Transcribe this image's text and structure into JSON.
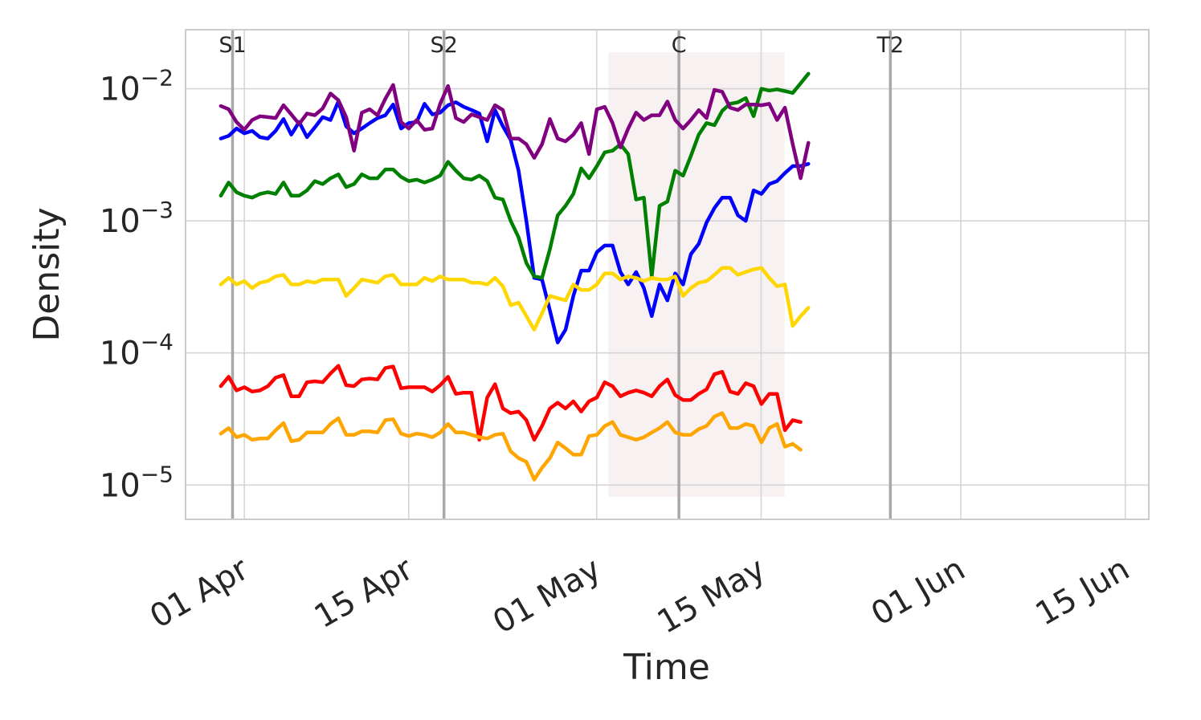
{
  "chart_data": {
    "type": "line",
    "title": "",
    "xlabel": "Time",
    "ylabel": "Density",
    "y_scale": "log",
    "ylim": [
      5.5e-06,
      0.028
    ],
    "xlim": [
      "2024-03-27",
      "2024-06-17"
    ],
    "grid": true,
    "x_ticks": [
      {
        "date": "2024-04-01",
        "label": "01 Apr"
      },
      {
        "date": "2024-04-15",
        "label": "15 Apr"
      },
      {
        "date": "2024-05-01",
        "label": "01 May"
      },
      {
        "date": "2024-05-15",
        "label": "15 May"
      },
      {
        "date": "2024-06-01",
        "label": "01 Jun"
      },
      {
        "date": "2024-06-15",
        "label": "15 Jun"
      }
    ],
    "y_ticks": [
      {
        "value": 1e-05,
        "base": "10",
        "exp": "−5"
      },
      {
        "value": 0.0001,
        "base": "10",
        "exp": "−4"
      },
      {
        "value": 0.001,
        "base": "10",
        "exp": "−3"
      },
      {
        "value": 0.01,
        "base": "10",
        "exp": "−2"
      }
    ],
    "events": [
      {
        "date": "2024-03-31",
        "label": "S1"
      },
      {
        "date": "2024-04-18",
        "label": "S2"
      },
      {
        "date": "2024-05-08",
        "label": "C"
      },
      {
        "date": "2024-05-26",
        "label": "T2"
      }
    ],
    "shaded_region": {
      "start": "2024-05-02",
      "end": "2024-05-17",
      "color": "#f3e6e6"
    },
    "x_start": "2024-03-30",
    "x_step_days": 0.667,
    "series": [
      {
        "color": "#0000ff",
        "values": [
          0.0042,
          0.0044,
          0.005,
          0.0046,
          0.0048,
          0.0043,
          0.0042,
          0.0048,
          0.0059,
          0.0045,
          0.0056,
          0.0043,
          0.0051,
          0.0061,
          0.0058,
          0.008,
          0.0052,
          0.0046,
          0.005,
          0.0055,
          0.006,
          0.0063,
          0.0076,
          0.005,
          0.0055,
          0.0056,
          0.0077,
          0.0064,
          0.0066,
          0.0075,
          0.0079,
          0.0073,
          0.0069,
          0.0065,
          0.004,
          0.0069,
          0.0052,
          0.0041,
          0.0024,
          0.001,
          0.00037,
          0.00036,
          0.00021,
          0.00012,
          0.00015,
          0.00027,
          0.00042,
          0.00042,
          0.00058,
          0.00065,
          0.00065,
          0.00041,
          0.00033,
          0.00041,
          0.00031,
          0.00019,
          0.00033,
          0.00025,
          0.0004,
          0.00033,
          0.00056,
          0.00067,
          0.00097,
          0.00125,
          0.0015,
          0.0015,
          0.0011,
          0.001,
          0.0017,
          0.0016,
          0.0019,
          0.002,
          0.0023,
          0.0026,
          0.0026,
          0.0027
        ]
      },
      {
        "color": "#008000",
        "values": [
          0.00155,
          0.00195,
          0.00165,
          0.00155,
          0.0015,
          0.0016,
          0.00165,
          0.0016,
          0.00195,
          0.00155,
          0.00155,
          0.0017,
          0.002,
          0.0019,
          0.0021,
          0.00225,
          0.0018,
          0.0019,
          0.00225,
          0.0021,
          0.0021,
          0.00245,
          0.00245,
          0.00215,
          0.002,
          0.00205,
          0.00195,
          0.00205,
          0.0022,
          0.0028,
          0.0024,
          0.0021,
          0.00205,
          0.0022,
          0.002,
          0.0015,
          0.00145,
          0.001,
          0.00075,
          0.00048,
          0.00038,
          0.00037,
          0.00061,
          0.0011,
          0.0013,
          0.0016,
          0.0025,
          0.0021,
          0.0026,
          0.0033,
          0.0034,
          0.0038,
          0.0032,
          0.00145,
          0.0015,
          0.00038,
          0.0013,
          0.0014,
          0.0024,
          0.0022,
          0.0031,
          0.0045,
          0.0055,
          0.0053,
          0.0068,
          0.0077,
          0.0079,
          0.0085,
          0.0062,
          0.01,
          0.0097,
          0.0099,
          0.0096,
          0.0093,
          0.011,
          0.013
        ]
      },
      {
        "color": "#800080",
        "values": [
          0.0074,
          0.007,
          0.0056,
          0.0049,
          0.0058,
          0.0062,
          0.0061,
          0.006,
          0.0075,
          0.0064,
          0.0054,
          0.0065,
          0.0063,
          0.0071,
          0.0092,
          0.0082,
          0.0061,
          0.0034,
          0.0066,
          0.007,
          0.0063,
          0.0084,
          0.0107,
          0.0056,
          0.005,
          0.0058,
          0.0049,
          0.005,
          0.0077,
          0.0105,
          0.006,
          0.0056,
          0.0064,
          0.0061,
          0.0058,
          0.0075,
          0.0069,
          0.0042,
          0.0042,
          0.0038,
          0.003,
          0.0038,
          0.0059,
          0.0042,
          0.004,
          0.0045,
          0.0055,
          0.0032,
          0.007,
          0.0073,
          0.0055,
          0.0036,
          0.005,
          0.0066,
          0.0058,
          0.0063,
          0.0063,
          0.008,
          0.0058,
          0.005,
          0.0058,
          0.0069,
          0.006,
          0.0098,
          0.0095,
          0.0072,
          0.0069,
          0.0076,
          0.0076,
          0.0075,
          0.0077,
          0.0058,
          0.0072,
          0.0038,
          0.0021,
          0.0039
        ]
      },
      {
        "color": "#ffd700",
        "values": [
          0.00033,
          0.00037,
          0.00033,
          0.00035,
          0.00031,
          0.00034,
          0.00035,
          0.00038,
          0.00039,
          0.00033,
          0.00033,
          0.00035,
          0.00034,
          0.00036,
          0.00036,
          0.00036,
          0.00027,
          0.00031,
          0.00036,
          0.00035,
          0.00034,
          0.00038,
          0.00039,
          0.00033,
          0.00033,
          0.00033,
          0.00037,
          0.00035,
          0.00038,
          0.00036,
          0.00036,
          0.00036,
          0.00034,
          0.00034,
          0.00033,
          0.00037,
          0.00032,
          0.00023,
          0.00024,
          0.00019,
          0.00015,
          0.0002,
          0.00027,
          0.00026,
          0.00025,
          0.00033,
          0.0003,
          0.0003,
          0.00033,
          0.0004,
          0.0004,
          0.00036,
          0.00038,
          0.00037,
          0.00035,
          0.00037,
          0.00036,
          0.00036,
          0.00038,
          0.00027,
          0.00031,
          0.00034,
          0.00035,
          0.00039,
          0.00044,
          0.00044,
          0.00039,
          0.00041,
          0.00043,
          0.00044,
          0.00037,
          0.00032,
          0.00033,
          0.00016,
          0.00019,
          0.00022
        ]
      },
      {
        "color": "#ff0000",
        "values": [
          5.6e-05,
          6.6e-05,
          5.2e-05,
          5.5e-05,
          5.1e-05,
          5.2e-05,
          5.6e-05,
          6.5e-05,
          6.8e-05,
          4.7e-05,
          4.7e-05,
          6e-05,
          6.1e-05,
          6e-05,
          7e-05,
          8e-05,
          5.7e-05,
          5.6e-05,
          6.3e-05,
          6.4e-05,
          6.3e-05,
          7.7e-05,
          7.9e-05,
          5.4e-05,
          5.5e-05,
          5.5e-05,
          5.5e-05,
          5.1e-05,
          5.7e-05,
          6.6e-05,
          4.9e-05,
          5e-05,
          5e-05,
          2.2e-05,
          4.6e-05,
          5.8e-05,
          3.8e-05,
          3.5e-05,
          3.6e-05,
          3.1e-05,
          2.2e-05,
          2.8e-05,
          3.8e-05,
          4.2e-05,
          3.8e-05,
          4.3e-05,
          3.6e-05,
          4.3e-05,
          4.6e-05,
          6e-05,
          5.6e-05,
          4.7e-05,
          5e-05,
          5.2e-05,
          5e-05,
          4.7e-05,
          5.6e-05,
          6.3e-05,
          4.8e-05,
          4.4e-05,
          4.4e-05,
          4.9e-05,
          5.3e-05,
          6.9e-05,
          7.2e-05,
          5.1e-05,
          4.9e-05,
          5.9e-05,
          5.6e-05,
          4.1e-05,
          4.9e-05,
          4.9e-05,
          2.6e-05,
          3.1e-05,
          3e-05
        ]
      },
      {
        "color": "#ffa500",
        "values": [
          2.45e-05,
          2.7e-05,
          2.3e-05,
          2.4e-05,
          2.2e-05,
          2.25e-05,
          2.25e-05,
          2.6e-05,
          2.95e-05,
          2.15e-05,
          2.2e-05,
          2.5e-05,
          2.5e-05,
          2.5e-05,
          2.9e-05,
          3.2e-05,
          2.4e-05,
          2.4e-05,
          2.55e-05,
          2.55e-05,
          2.5e-05,
          3.1e-05,
          3.15e-05,
          2.45e-05,
          2.35e-05,
          2.45e-05,
          2.4e-05,
          2.3e-05,
          2.5e-05,
          2.9e-05,
          2.5e-05,
          2.5e-05,
          2.4e-05,
          2.3e-05,
          2.25e-05,
          2.4e-05,
          2.45e-05,
          1.8e-05,
          1.6e-05,
          1.5e-05,
          1.1e-05,
          1.35e-05,
          1.6e-05,
          2.1e-05,
          1.9e-05,
          1.7e-05,
          1.7e-05,
          2.35e-05,
          2.4e-05,
          2.8e-05,
          3e-05,
          2.4e-05,
          2.3e-05,
          2.2e-05,
          2.3e-05,
          2.5e-05,
          2.7e-05,
          3e-05,
          2.5e-05,
          2.4e-05,
          2.4e-05,
          2.65e-05,
          2.8e-05,
          3.3e-05,
          3.5e-05,
          2.7e-05,
          2.7e-05,
          2.9e-05,
          2.8e-05,
          2.1e-05,
          2.7e-05,
          2.9e-05,
          1.95e-05,
          2.05e-05,
          1.85e-05
        ]
      }
    ]
  }
}
